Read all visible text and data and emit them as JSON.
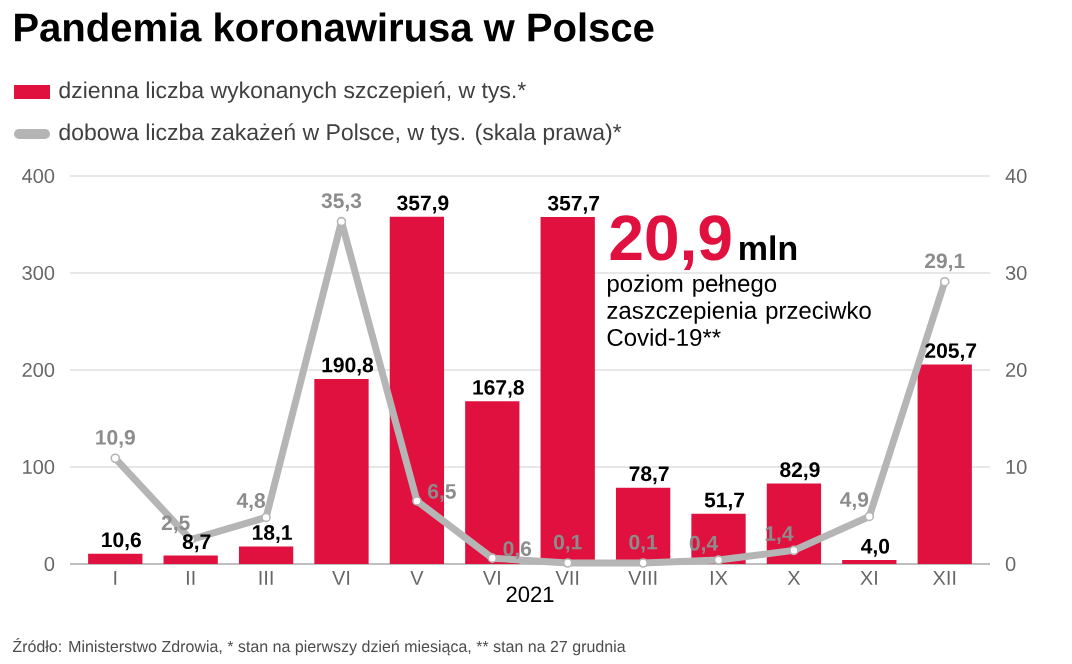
{
  "chart_data": {
    "type": "bar",
    "title": "Pandemia koronawirusa w Polsce",
    "xlabel": "2021",
    "categories": [
      "I",
      "II",
      "III",
      "VI",
      "V",
      "VI",
      "VII",
      "VIII",
      "IX",
      "X",
      "XI",
      "XII"
    ],
    "series": [
      {
        "name": "dzienna liczba wykonanych szczepień, w tys.*",
        "color": "#e0113f",
        "values": [
          10.6,
          8.7,
          18.1,
          190.8,
          357.9,
          167.8,
          357.7,
          78.7,
          51.7,
          82.9,
          4.0,
          205.7
        ],
        "value_labels": [
          "10,6",
          "8,7",
          "18,1",
          "190,8",
          "357,9",
          "167,8",
          "357,7",
          "78,7",
          "51,7",
          "82,9",
          "4,0",
          "205,7"
        ]
      },
      {
        "name": "dobowa liczba zakażeń w Polsce, w tys. (skala prawa)*",
        "type": "line",
        "axis": "y2",
        "color": "#b5b5b5",
        "marker": "circle",
        "values": [
          10.9,
          2.5,
          4.8,
          35.3,
          6.5,
          0.6,
          0.1,
          0.1,
          0.4,
          1.4,
          4.9,
          29.1
        ],
        "value_labels": [
          "10,9",
          "2,5",
          "4,8",
          "35,3",
          "6,5",
          "0,6",
          "0,1",
          "0,1",
          "0,4",
          "1,4",
          "4,9",
          "29,1"
        ]
      }
    ],
    "ylim": [
      0,
      400
    ],
    "yticks": [
      0,
      100,
      200,
      300,
      400
    ],
    "y2lim": [
      0,
      40
    ],
    "y2ticks": [
      0,
      10,
      20,
      30,
      40
    ],
    "grid": "y",
    "legend": "top left",
    "annotations": [
      "20,9",
      "mln",
      "poziom pełnego zaszczepienia przeciwko Covid-19**",
      "Źródło: Ministerstwo Zdrowia, * stan na pierwszy dzień miesiąca, ** stan na 27 grudnia"
    ]
  }
}
